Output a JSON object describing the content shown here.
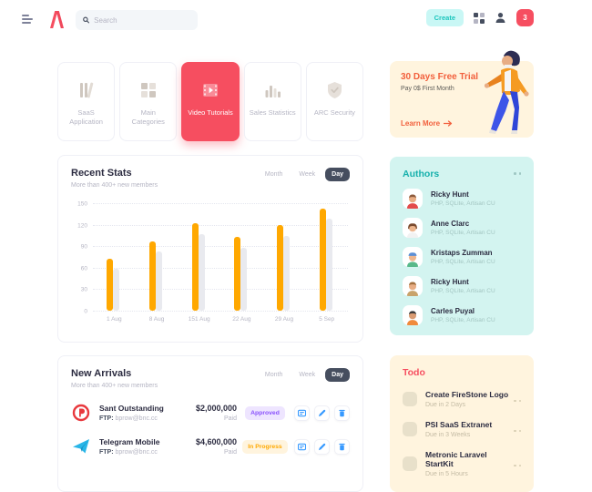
{
  "header": {
    "search": {
      "placeholder": "Search"
    },
    "create_label": "Create",
    "notification_count": "3"
  },
  "filters": {
    "month": "Month",
    "week": "Week",
    "day": "Day"
  },
  "categories": {
    "items": [
      {
        "label": "SaaS Application",
        "icon": "library-icon",
        "active": false
      },
      {
        "label": "Main Categories",
        "icon": "grid-icon",
        "active": false
      },
      {
        "label": "Video Tutorials",
        "icon": "video-icon",
        "active": true
      },
      {
        "label": "Sales Statistics",
        "icon": "bar-chart-icon",
        "active": false
      },
      {
        "label": "ARC Security",
        "icon": "shield-check-icon",
        "active": false
      }
    ]
  },
  "trial": {
    "title": "30 Days Free Trial",
    "subtitle": "Pay 0$ First Month",
    "cta": "Learn More",
    "accent": "#F2603D"
  },
  "recent_stats": {
    "title": "Recent Stats",
    "subtitle": "More than 400+ new members",
    "active_filter": "Day"
  },
  "chart_data": {
    "type": "bar",
    "title": "Recent Stats",
    "categories": [
      "1 Aug",
      "8 Aug",
      "151 Aug",
      "22 Aug",
      "29 Aug",
      "5 Sep"
    ],
    "series": [
      {
        "name": "current",
        "color": "#FFA800",
        "values": [
          73,
          97,
          122,
          103,
          119,
          142
        ]
      },
      {
        "name": "previous",
        "color": "#E9EAEF",
        "values": [
          58,
          83,
          107,
          88,
          104,
          128
        ]
      }
    ],
    "yticks": [
      150,
      120,
      90,
      60,
      30,
      0
    ],
    "ylim": [
      0,
      150
    ],
    "xlabel": "",
    "ylabel": "",
    "grid": "dotted-horizontal",
    "legend": "none"
  },
  "authors": {
    "title": "Authors",
    "items": [
      {
        "name": "Ricky Hunt",
        "skills": "PHP, SQLite, Artisan CU"
      },
      {
        "name": "Anne Clarc",
        "skills": "PHP, SQLite, Artisan CU"
      },
      {
        "name": "Kristaps Zumman",
        "skills": "PHP, SQLite, Artisan CU"
      },
      {
        "name": "Ricky Hunt",
        "skills": "PHP, SQLite, Artisan CU"
      },
      {
        "name": "Carles Puyal",
        "skills": "PHP, SQLite, Artisan CU"
      }
    ]
  },
  "new_arrivals": {
    "title": "New Arrivals",
    "subtitle": "More than 400+ new members",
    "active_filter": "Day",
    "ftp_label": "FTP:",
    "items": [
      {
        "name": "Sant Outstanding",
        "ftp": "bprow@bnc.cc",
        "amount": "$2,000,000",
        "amount_status": "Paid",
        "status": "Approved",
        "status_color": "#8950FC",
        "status_bg": "#EEE5FF"
      },
      {
        "name": "Telegram Mobile",
        "ftp": "bprow@bnc.cc",
        "amount": "$4,600,000",
        "amount_status": "Paid",
        "status": "In Progress",
        "status_color": "#FFA800",
        "status_bg": "#FFF4DE"
      }
    ]
  },
  "todo": {
    "title": "Todo",
    "items": [
      {
        "title": "Create FireStone Logo",
        "due": "Due in 2 Days"
      },
      {
        "title": "PSI SaaS Extranet",
        "due": "Due in 3 Weeks"
      },
      {
        "title": "Metronic Laravel StartKit",
        "due": "Due in 5 Hours"
      }
    ]
  },
  "colors": {
    "accent_red": "#F64E60",
    "accent_teal": "#1BC5BD",
    "accent_orange": "#FFA800",
    "dark_pill": "#464E5F",
    "authors_bg": "#D3F4F0",
    "warning_bg": "#FFF4DE"
  }
}
